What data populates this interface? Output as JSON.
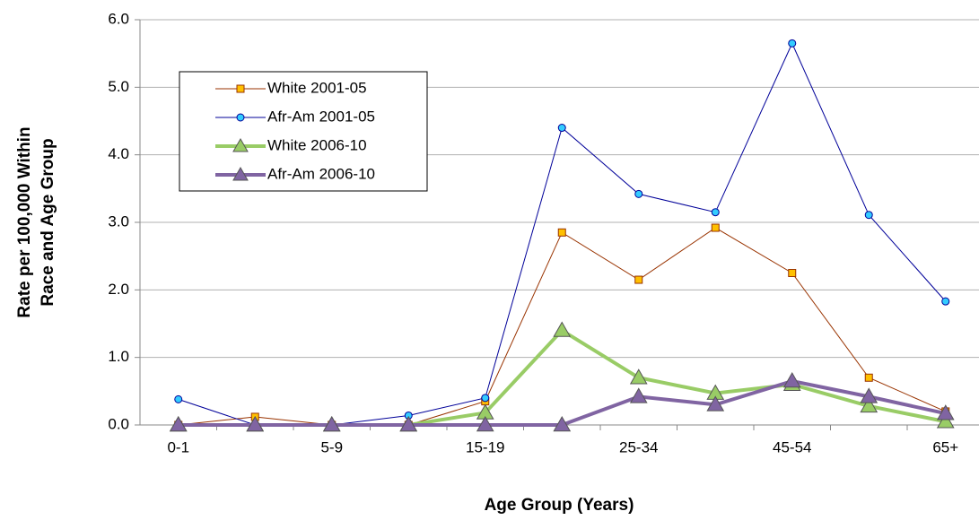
{
  "chart_data": {
    "type": "line",
    "x_label": "Age Group (Years)",
    "y_label": [
      "Rate per 100,000 Within",
      "Race and Age Group"
    ],
    "categories": [
      "0-1",
      null,
      "5-9",
      null,
      "15-19",
      null,
      "25-34",
      null,
      "45-54",
      null,
      "65+"
    ],
    "series": [
      {
        "name": "White 2001-05",
        "color": "#993300",
        "marker": "square",
        "marker_color": "#ffc000",
        "width": 1,
        "values": [
          0,
          0.12,
          0,
          0,
          0.35,
          2.85,
          2.15,
          2.92,
          2.25,
          0.7,
          0.2
        ]
      },
      {
        "name": "Afr-Am 2001-05",
        "color": "#000099",
        "marker": "circle",
        "marker_color": "#33ccff",
        "width": 1,
        "values": [
          0.38,
          0,
          0,
          0.14,
          0.4,
          4.4,
          3.42,
          3.15,
          5.65,
          3.11,
          1.83
        ]
      },
      {
        "name": "White 2006-10",
        "color": "#99cc66",
        "marker": "triangle",
        "marker_color": "#99cc66",
        "width": 4,
        "values": [
          0,
          0,
          0,
          0,
          0.18,
          1.4,
          0.7,
          0.47,
          0.6,
          0.28,
          0.05
        ]
      },
      {
        "name": "Afr-Am 2006-10",
        "color": "#8064a2",
        "marker": "triangle",
        "marker_color": "#8064a2",
        "width": 4,
        "values": [
          0,
          0,
          0,
          0,
          0,
          0,
          0.42,
          0.3,
          0.65,
          0.42,
          0.17
        ]
      }
    ],
    "ylim": [
      0,
      6
    ],
    "yticks": [
      {
        "value": 0,
        "label": "0.0"
      },
      {
        "value": 1,
        "label": "1.0"
      },
      {
        "value": 2,
        "label": "2.0"
      },
      {
        "value": 3,
        "label": "3.0"
      },
      {
        "value": 4,
        "label": "4.0"
      },
      {
        "value": 5,
        "label": "5.0"
      },
      {
        "value": 6,
        "label": "6.0"
      }
    ],
    "grid": true
  }
}
